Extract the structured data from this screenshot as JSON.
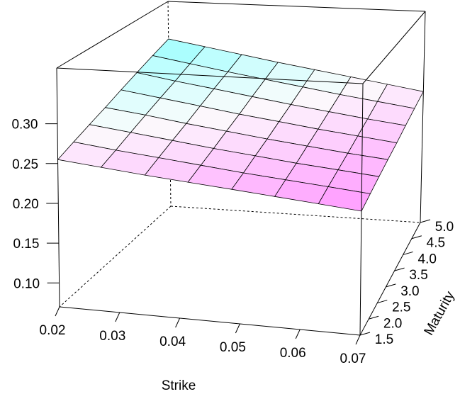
{
  "chart_data": {
    "type": "surface3d",
    "title": "",
    "xlabel": "Strike",
    "ylabel": "Maturity",
    "zlabel": "",
    "x_ticks": [
      "0.02",
      "0.03",
      "0.04",
      "0.05",
      "0.06",
      "0.07"
    ],
    "y_ticks": [
      "1.5",
      "2.0",
      "2.5",
      "3.0",
      "3.5",
      "4.0",
      "4.5",
      "5.0"
    ],
    "z_ticks": [
      "0.10",
      "0.15",
      "0.20",
      "0.25",
      "0.30"
    ],
    "xlim": [
      0.02,
      0.07
    ],
    "ylim": [
      1.5,
      5.0
    ],
    "zlim": [
      0.07,
      0.37
    ],
    "strike": [
      0.02,
      0.0271,
      0.0343,
      0.0414,
      0.0486,
      0.0557,
      0.0629,
      0.07
    ],
    "maturity": [
      1.5,
      2.0,
      2.5,
      3.0,
      3.5,
      4.0,
      4.5,
      5.0
    ],
    "vol_matrix": [
      [
        0.255,
        0.249,
        0.243,
        0.238,
        0.233,
        0.228,
        0.223,
        0.218
      ],
      [
        0.263,
        0.256,
        0.25,
        0.244,
        0.238,
        0.233,
        0.228,
        0.223
      ],
      [
        0.271,
        0.264,
        0.257,
        0.25,
        0.244,
        0.238,
        0.233,
        0.228
      ],
      [
        0.279,
        0.272,
        0.264,
        0.257,
        0.25,
        0.244,
        0.238,
        0.233
      ],
      [
        0.288,
        0.28,
        0.272,
        0.264,
        0.257,
        0.25,
        0.244,
        0.238
      ],
      [
        0.297,
        0.288,
        0.28,
        0.272,
        0.264,
        0.257,
        0.25,
        0.244
      ],
      [
        0.306,
        0.297,
        0.288,
        0.28,
        0.272,
        0.264,
        0.257,
        0.25
      ],
      [
        0.315,
        0.306,
        0.297,
        0.288,
        0.28,
        0.272,
        0.264,
        0.256
      ]
    ],
    "color_low": "#ff99ff",
    "color_high": "#99ffff",
    "grid": false,
    "legend": "none"
  }
}
